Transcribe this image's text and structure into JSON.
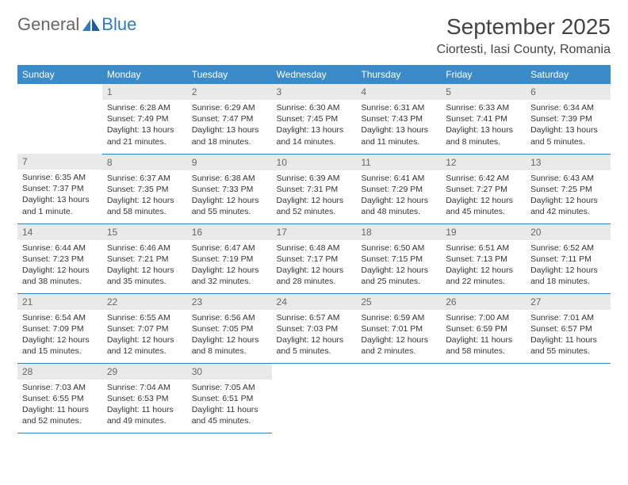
{
  "logo": {
    "part1": "General",
    "part2": "Blue"
  },
  "title": "September 2025",
  "location": "Ciortesti, Iasi County, Romania",
  "colors": {
    "header_bg": "#3b8bc9",
    "header_text": "#ffffff",
    "daynum_bg": "#e9e9e9",
    "rule": "#3b7bb0",
    "logo_blue": "#2f7bbf"
  },
  "dow": [
    "Sunday",
    "Monday",
    "Tuesday",
    "Wednesday",
    "Thursday",
    "Friday",
    "Saturday"
  ],
  "weeks": [
    [
      {
        "n": "",
        "sr": "",
        "ss": "",
        "dl": ""
      },
      {
        "n": "1",
        "sr": "Sunrise: 6:28 AM",
        "ss": "Sunset: 7:49 PM",
        "dl": "Daylight: 13 hours and 21 minutes."
      },
      {
        "n": "2",
        "sr": "Sunrise: 6:29 AM",
        "ss": "Sunset: 7:47 PM",
        "dl": "Daylight: 13 hours and 18 minutes."
      },
      {
        "n": "3",
        "sr": "Sunrise: 6:30 AM",
        "ss": "Sunset: 7:45 PM",
        "dl": "Daylight: 13 hours and 14 minutes."
      },
      {
        "n": "4",
        "sr": "Sunrise: 6:31 AM",
        "ss": "Sunset: 7:43 PM",
        "dl": "Daylight: 13 hours and 11 minutes."
      },
      {
        "n": "5",
        "sr": "Sunrise: 6:33 AM",
        "ss": "Sunset: 7:41 PM",
        "dl": "Daylight: 13 hours and 8 minutes."
      },
      {
        "n": "6",
        "sr": "Sunrise: 6:34 AM",
        "ss": "Sunset: 7:39 PM",
        "dl": "Daylight: 13 hours and 5 minutes."
      }
    ],
    [
      {
        "n": "7",
        "sr": "Sunrise: 6:35 AM",
        "ss": "Sunset: 7:37 PM",
        "dl": "Daylight: 13 hours and 1 minute."
      },
      {
        "n": "8",
        "sr": "Sunrise: 6:37 AM",
        "ss": "Sunset: 7:35 PM",
        "dl": "Daylight: 12 hours and 58 minutes."
      },
      {
        "n": "9",
        "sr": "Sunrise: 6:38 AM",
        "ss": "Sunset: 7:33 PM",
        "dl": "Daylight: 12 hours and 55 minutes."
      },
      {
        "n": "10",
        "sr": "Sunrise: 6:39 AM",
        "ss": "Sunset: 7:31 PM",
        "dl": "Daylight: 12 hours and 52 minutes."
      },
      {
        "n": "11",
        "sr": "Sunrise: 6:41 AM",
        "ss": "Sunset: 7:29 PM",
        "dl": "Daylight: 12 hours and 48 minutes."
      },
      {
        "n": "12",
        "sr": "Sunrise: 6:42 AM",
        "ss": "Sunset: 7:27 PM",
        "dl": "Daylight: 12 hours and 45 minutes."
      },
      {
        "n": "13",
        "sr": "Sunrise: 6:43 AM",
        "ss": "Sunset: 7:25 PM",
        "dl": "Daylight: 12 hours and 42 minutes."
      }
    ],
    [
      {
        "n": "14",
        "sr": "Sunrise: 6:44 AM",
        "ss": "Sunset: 7:23 PM",
        "dl": "Daylight: 12 hours and 38 minutes."
      },
      {
        "n": "15",
        "sr": "Sunrise: 6:46 AM",
        "ss": "Sunset: 7:21 PM",
        "dl": "Daylight: 12 hours and 35 minutes."
      },
      {
        "n": "16",
        "sr": "Sunrise: 6:47 AM",
        "ss": "Sunset: 7:19 PM",
        "dl": "Daylight: 12 hours and 32 minutes."
      },
      {
        "n": "17",
        "sr": "Sunrise: 6:48 AM",
        "ss": "Sunset: 7:17 PM",
        "dl": "Daylight: 12 hours and 28 minutes."
      },
      {
        "n": "18",
        "sr": "Sunrise: 6:50 AM",
        "ss": "Sunset: 7:15 PM",
        "dl": "Daylight: 12 hours and 25 minutes."
      },
      {
        "n": "19",
        "sr": "Sunrise: 6:51 AM",
        "ss": "Sunset: 7:13 PM",
        "dl": "Daylight: 12 hours and 22 minutes."
      },
      {
        "n": "20",
        "sr": "Sunrise: 6:52 AM",
        "ss": "Sunset: 7:11 PM",
        "dl": "Daylight: 12 hours and 18 minutes."
      }
    ],
    [
      {
        "n": "21",
        "sr": "Sunrise: 6:54 AM",
        "ss": "Sunset: 7:09 PM",
        "dl": "Daylight: 12 hours and 15 minutes."
      },
      {
        "n": "22",
        "sr": "Sunrise: 6:55 AM",
        "ss": "Sunset: 7:07 PM",
        "dl": "Daylight: 12 hours and 12 minutes."
      },
      {
        "n": "23",
        "sr": "Sunrise: 6:56 AM",
        "ss": "Sunset: 7:05 PM",
        "dl": "Daylight: 12 hours and 8 minutes."
      },
      {
        "n": "24",
        "sr": "Sunrise: 6:57 AM",
        "ss": "Sunset: 7:03 PM",
        "dl": "Daylight: 12 hours and 5 minutes."
      },
      {
        "n": "25",
        "sr": "Sunrise: 6:59 AM",
        "ss": "Sunset: 7:01 PM",
        "dl": "Daylight: 12 hours and 2 minutes."
      },
      {
        "n": "26",
        "sr": "Sunrise: 7:00 AM",
        "ss": "Sunset: 6:59 PM",
        "dl": "Daylight: 11 hours and 58 minutes."
      },
      {
        "n": "27",
        "sr": "Sunrise: 7:01 AM",
        "ss": "Sunset: 6:57 PM",
        "dl": "Daylight: 11 hours and 55 minutes."
      }
    ],
    [
      {
        "n": "28",
        "sr": "Sunrise: 7:03 AM",
        "ss": "Sunset: 6:55 PM",
        "dl": "Daylight: 11 hours and 52 minutes."
      },
      {
        "n": "29",
        "sr": "Sunrise: 7:04 AM",
        "ss": "Sunset: 6:53 PM",
        "dl": "Daylight: 11 hours and 49 minutes."
      },
      {
        "n": "30",
        "sr": "Sunrise: 7:05 AM",
        "ss": "Sunset: 6:51 PM",
        "dl": "Daylight: 11 hours and 45 minutes."
      },
      {
        "n": "",
        "sr": "",
        "ss": "",
        "dl": ""
      },
      {
        "n": "",
        "sr": "",
        "ss": "",
        "dl": ""
      },
      {
        "n": "",
        "sr": "",
        "ss": "",
        "dl": ""
      },
      {
        "n": "",
        "sr": "",
        "ss": "",
        "dl": ""
      }
    ]
  ]
}
